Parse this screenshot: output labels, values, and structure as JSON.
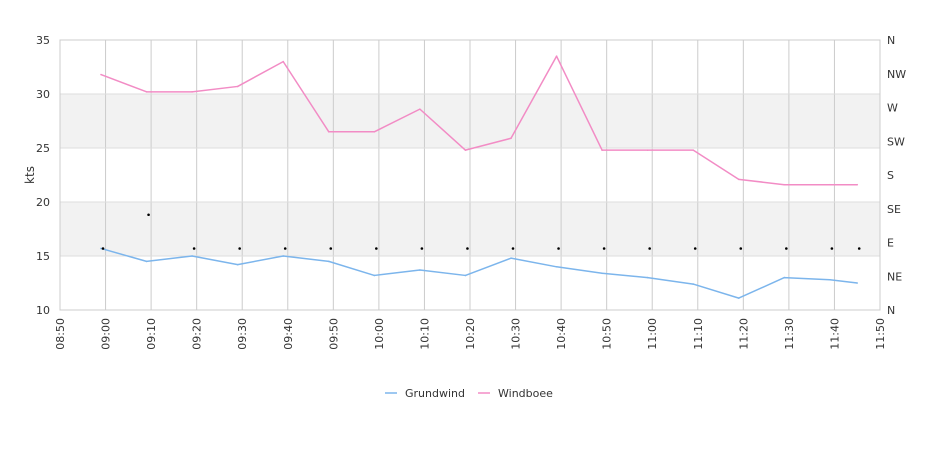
{
  "chart_data": {
    "type": "line",
    "ylabel": "kts",
    "ylim": [
      10,
      35
    ],
    "yticks": [
      "10",
      "15",
      "20",
      "25",
      "30",
      "35"
    ],
    "right_axis_labels": [
      "N",
      "NE",
      "E",
      "SE",
      "S",
      "SW",
      "W",
      "NW",
      "N"
    ],
    "x_tick_labels": [
      "08:50",
      "09:00",
      "09:10",
      "09:20",
      "09:30",
      "09:40",
      "09:50",
      "10:00",
      "10:10",
      "10:20",
      "10:30",
      "10:40",
      "10:50",
      "11:00",
      "11:10",
      "11:20",
      "11:30",
      "11:40",
      "11:50"
    ],
    "x_range": [
      "08:50",
      "11:50"
    ],
    "x": [
      "08:59",
      "09:09",
      "09:19",
      "09:29",
      "09:39",
      "09:49",
      "09:59",
      "10:09",
      "10:19",
      "10:29",
      "10:39",
      "10:49",
      "10:59",
      "11:09",
      "11:19",
      "11:29",
      "11:39",
      "11:45"
    ],
    "bands": [
      [
        15,
        20
      ],
      [
        25,
        30
      ]
    ],
    "grid": true,
    "legend_position": "bottom",
    "series": [
      {
        "name": "Grundwind",
        "color": "#7cb5ec",
        "values": [
          15.7,
          14.5,
          15.0,
          14.2,
          15.0,
          14.5,
          13.2,
          13.7,
          13.2,
          14.8,
          14.0,
          13.4,
          13.0,
          12.4,
          11.1,
          13.0,
          12.8,
          12.5
        ]
      },
      {
        "name": "Windboee",
        "color": "#f28cc5",
        "values": [
          31.8,
          30.2,
          30.2,
          30.7,
          33.0,
          26.5,
          26.5,
          28.6,
          24.8,
          25.9,
          33.5,
          24.8,
          24.8,
          24.8,
          22.1,
          21.6,
          21.6,
          21.6
        ]
      }
    ],
    "direction_markers": [
      "E",
      "SE",
      "E",
      "E",
      "E",
      "E",
      "E",
      "E",
      "E",
      "E",
      "E",
      "E",
      "E",
      "E",
      "E",
      "E",
      "E",
      "E"
    ]
  }
}
